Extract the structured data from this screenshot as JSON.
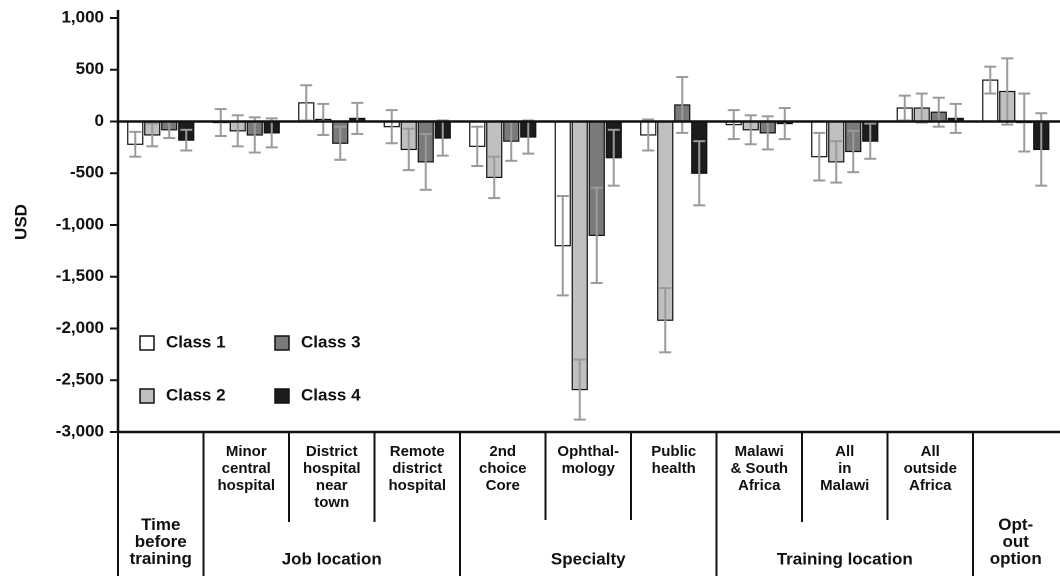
{
  "chart_data": {
    "type": "bar",
    "y_label": "USD",
    "categories": [
      "Time\nbefore\ntraining",
      "Minor\ncentral\nhospital",
      "District\nhospital\nnear\ntown",
      "Remote\ndistrict\nhospital",
      "2nd\nchoice\nCore",
      "Ophthal-\nmology",
      "Public\nhealth",
      "Malawi\n& South\nAfrica",
      "All\nin\nMalawi",
      "All\noutside\nAfrica",
      "Opt-\nout\noption"
    ],
    "group_labels": [
      "Job location",
      "Specialty",
      "Training location"
    ],
    "series": [
      {
        "name": "Class 1",
        "color": "#ffffff",
        "values": [
          -220,
          -10,
          180,
          -50,
          -240,
          -1200,
          -130,
          -30,
          -340,
          130,
          400
        ],
        "errors": [
          120,
          130,
          170,
          160,
          190,
          480,
          150,
          140,
          230,
          120,
          130
        ]
      },
      {
        "name": "Class 2",
        "color": "#c0c0c0",
        "values": [
          -130,
          -90,
          20,
          -270,
          -540,
          -2590,
          -1920,
          -80,
          -390,
          130,
          290
        ],
        "errors": [
          110,
          150,
          150,
          200,
          200,
          290,
          310,
          140,
          200,
          140,
          320
        ]
      },
      {
        "name": "Class 3",
        "color": "#7a7a7a",
        "values": [
          -80,
          -130,
          -210,
          -390,
          -190,
          -1100,
          160,
          -110,
          -290,
          90,
          -10
        ],
        "errors": [
          80,
          170,
          160,
          270,
          190,
          460,
          270,
          160,
          200,
          140,
          280
        ]
      },
      {
        "name": "Class 4",
        "color": "#1c1c1c",
        "values": [
          -180,
          -110,
          30,
          -160,
          -150,
          -350,
          -500,
          -20,
          -190,
          30,
          -270
        ],
        "errors": [
          100,
          140,
          150,
          170,
          160,
          270,
          310,
          150,
          170,
          140,
          350
        ]
      }
    ],
    "ylim": [
      -3000,
      1000
    ],
    "yticks": [
      {
        "value": -3000,
        "label": "-3,000"
      },
      {
        "value": -2500,
        "label": "-2,500"
      },
      {
        "value": -2000,
        "label": "-2,000"
      },
      {
        "value": -1500,
        "label": "-1,500"
      },
      {
        "value": -1000,
        "label": "-1,000"
      },
      {
        "value": -500,
        "label": "-500"
      },
      0,
      500,
      {
        "value": 1000,
        "label": "1,000"
      }
    ],
    "grid": false
  }
}
